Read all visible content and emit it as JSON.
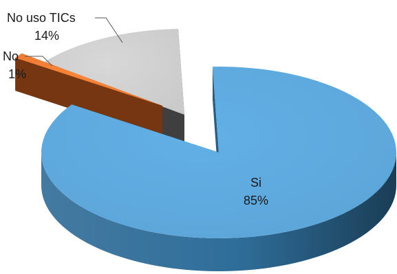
{
  "chart_data": {
    "type": "pie",
    "style": "3d-exploded",
    "slices": [
      {
        "label": "Si",
        "value": 85,
        "value_label": "85%",
        "color": "#5ba3d6",
        "side_color": "#2f6e9a",
        "exploded": false
      },
      {
        "label": "No",
        "value": 1,
        "value_label": "1%",
        "color": "#e87a33",
        "side_color": "#8a3f14",
        "exploded": true
      },
      {
        "label": "No uso TICs",
        "value": 14,
        "value_label": "14%",
        "color": "#c8c8c8",
        "side_color": "#4a4a4a",
        "exploded": true
      }
    ]
  }
}
